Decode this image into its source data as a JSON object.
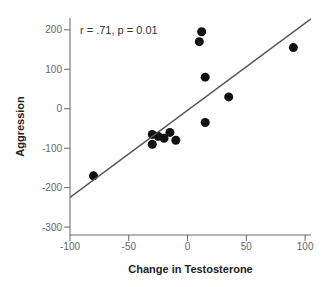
{
  "chart_data": {
    "type": "scatter",
    "xlabel": "Change in Testosterone",
    "ylabel": "Aggression",
    "annotation": "r = .71, p = 0.01",
    "xlim": [
      -100,
      105
    ],
    "ylim": [
      -320,
      230
    ],
    "xticks": [
      -100,
      -50,
      0,
      50,
      100
    ],
    "yticks": [
      -300,
      -200,
      -100,
      0,
      100,
      200
    ],
    "grid": false,
    "series": [
      {
        "type": "scatter",
        "color": "#111111",
        "x": [
          -80,
          -30,
          -30,
          -25,
          -20,
          -15,
          -10,
          10,
          12,
          15,
          15,
          35,
          90
        ],
        "values": [
          -170,
          -90,
          -65,
          -70,
          -75,
          -60,
          -80,
          170,
          195,
          80,
          -35,
          30,
          155
        ]
      },
      {
        "type": "line",
        "color": "#555555",
        "x": [
          -100,
          105
        ],
        "values": [
          -225,
          228
        ]
      }
    ]
  }
}
